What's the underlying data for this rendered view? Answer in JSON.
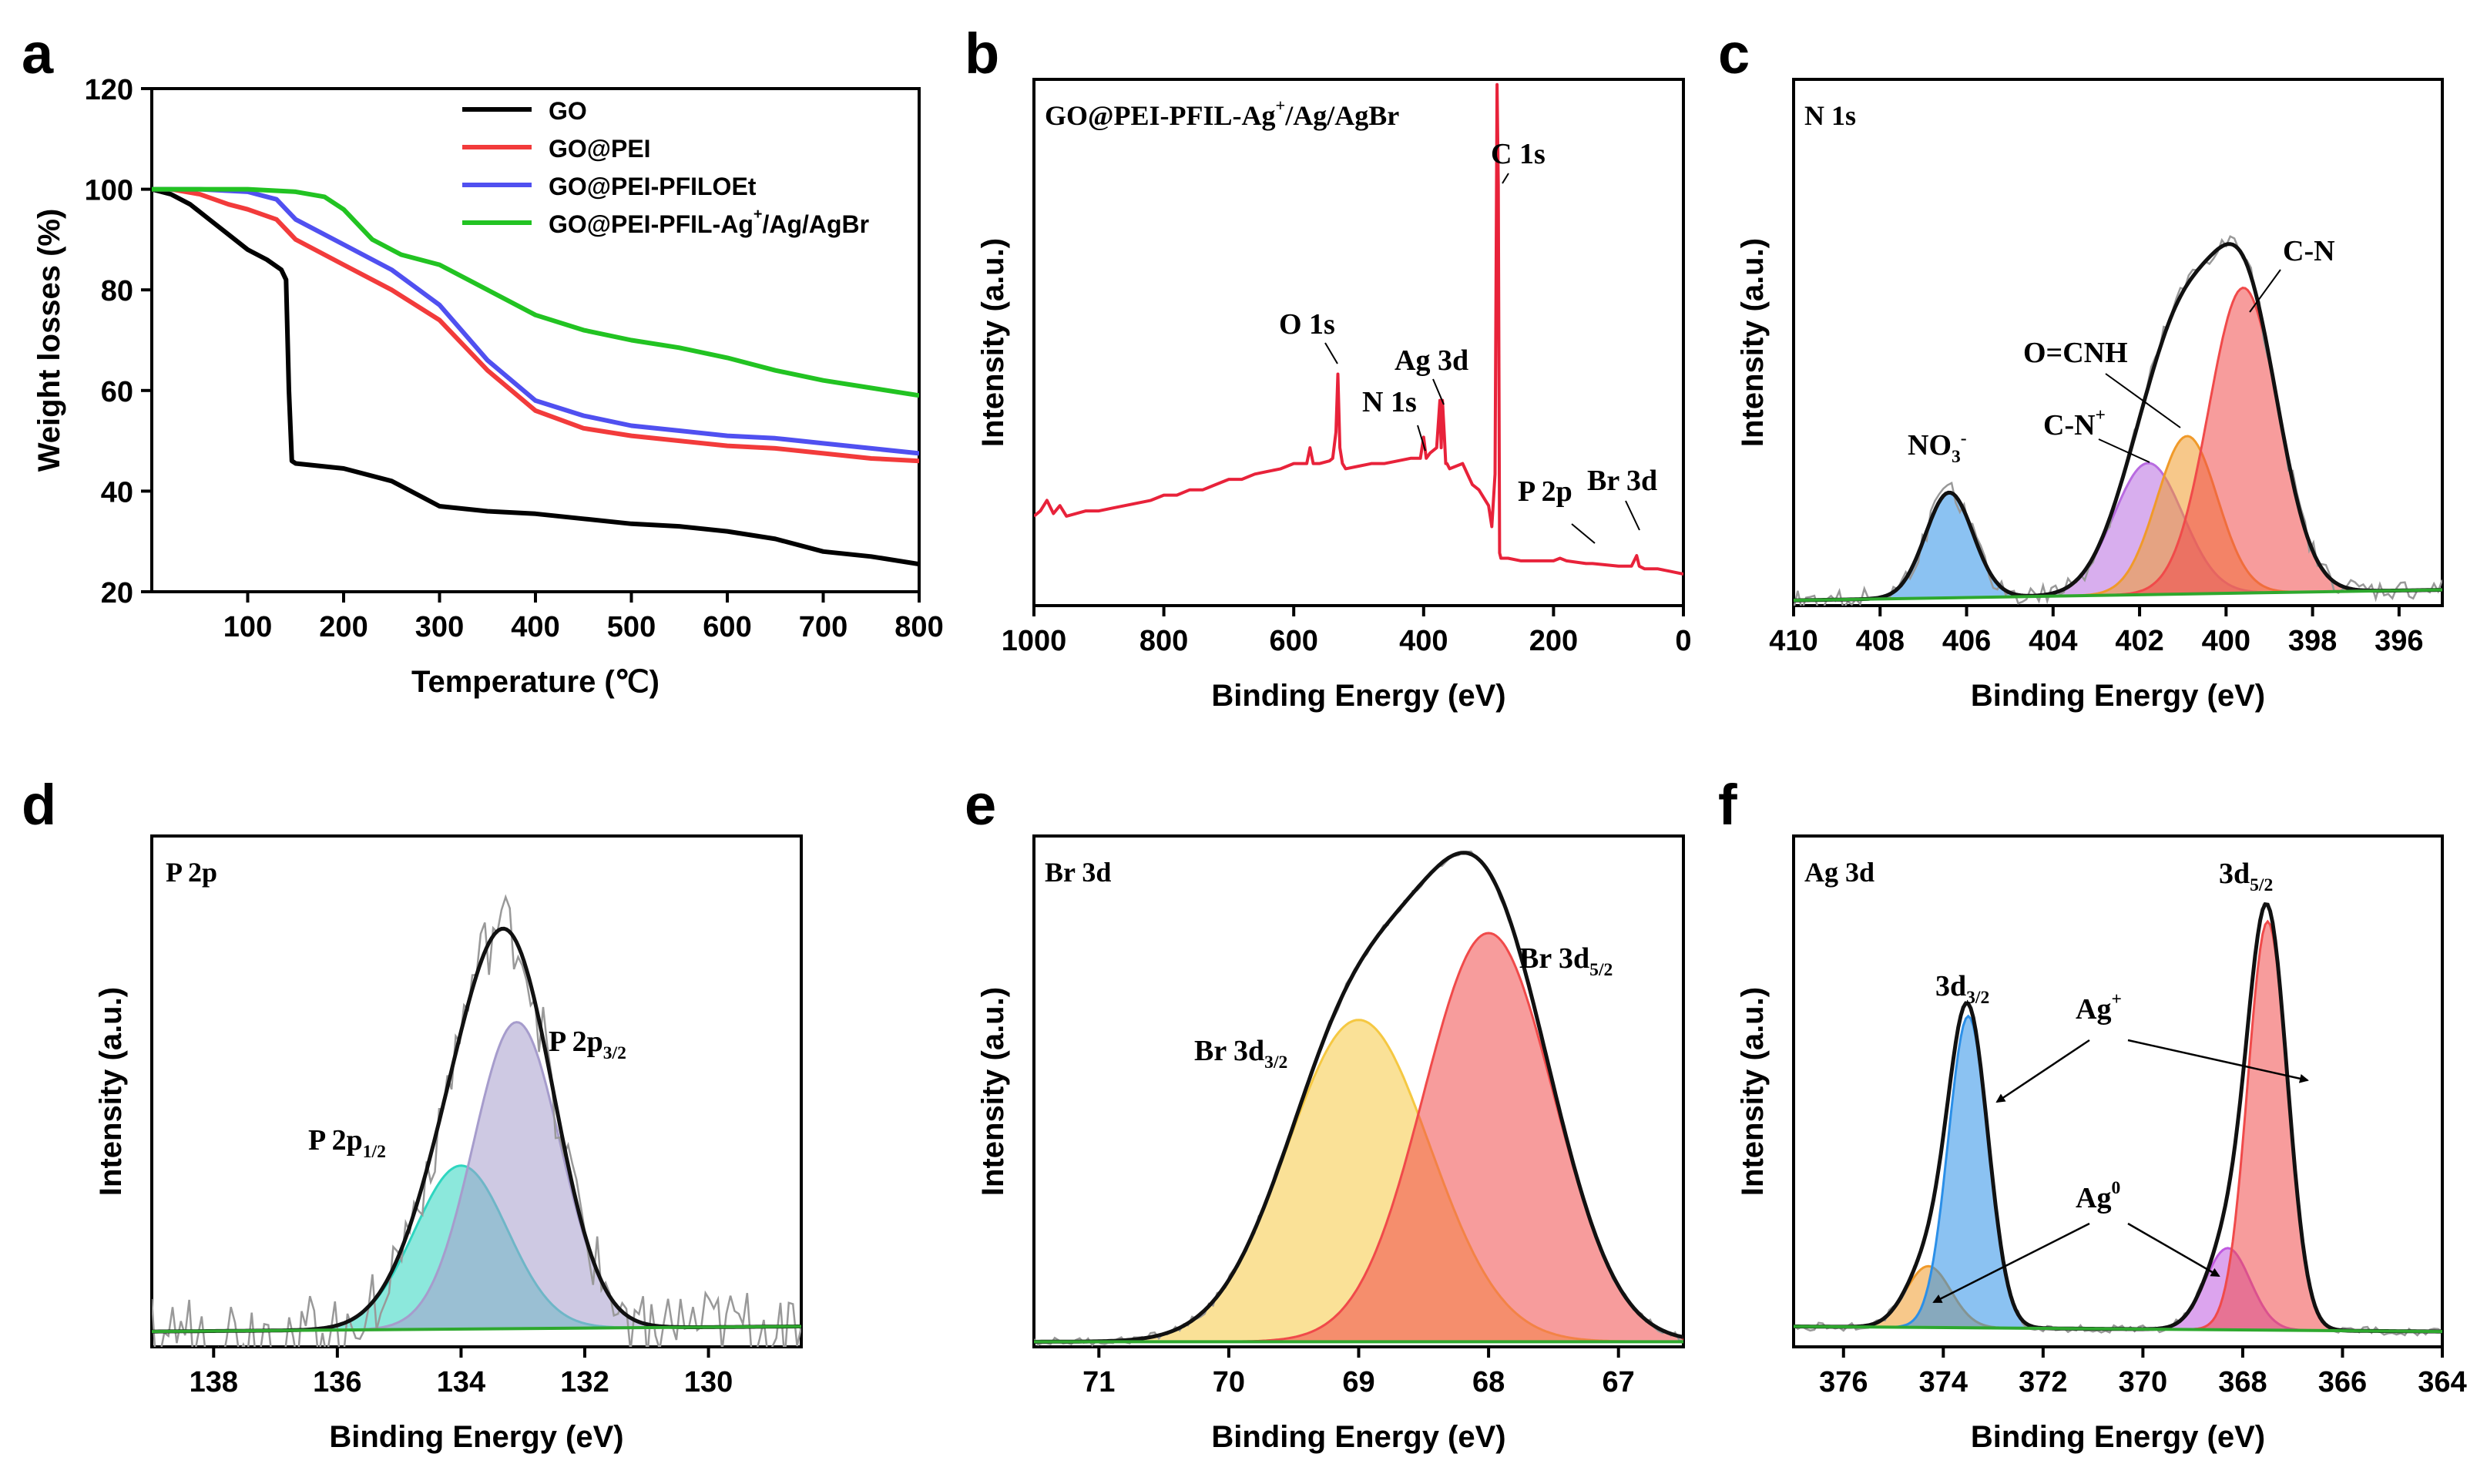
{
  "figure": {
    "letters": [
      "a",
      "b",
      "c",
      "d",
      "e",
      "f"
    ],
    "colors": {
      "go": "#000000",
      "go_pei": "#f23b3b",
      "go_pei_pfiloet": "#5050f0",
      "go_pei_pfil_ag": "#22c322",
      "survey": "#e8223a",
      "raw": "#999999",
      "envelope": "#111111",
      "baseline": "#2ea82e",
      "blue": "#2b8fe8",
      "violet": "#b86be0",
      "orange": "#f09a2a",
      "red": "#f04a4a",
      "purple_gray": "#a69ccc",
      "teal": "#2ed6c0",
      "yellow": "#f5c842",
      "magenta": "#c05ae0"
    }
  },
  "chart_data": [
    {
      "id": "a",
      "type": "line",
      "letter": "a",
      "xlabel": "Temperature (℃)",
      "ylabel": "Weight losses (%)",
      "xlim": [
        0,
        800
      ],
      "ylim": [
        20,
        120
      ],
      "xticks": [
        100,
        200,
        300,
        400,
        500,
        600,
        700,
        800
      ],
      "yticks": [
        20,
        40,
        60,
        80,
        100,
        120
      ],
      "legend_position": "top-right",
      "series": [
        {
          "name": "GO",
          "legend": [
            "GO"
          ],
          "color_key": "go",
          "x": [
            0,
            20,
            40,
            60,
            80,
            100,
            120,
            135,
            140,
            143,
            146,
            150,
            200,
            250,
            280,
            300,
            350,
            400,
            450,
            500,
            550,
            600,
            650,
            700,
            750,
            800
          ],
          "y": [
            100,
            99,
            97,
            94,
            91,
            88,
            86,
            84,
            82,
            60,
            46,
            45.5,
            44.5,
            42,
            39,
            37,
            36,
            35.5,
            34.5,
            33.5,
            33,
            32,
            30.5,
            28,
            27,
            25.5
          ]
        },
        {
          "name": "GO@PEI",
          "legend": [
            "GO@PEI"
          ],
          "color_key": "go_pei",
          "x": [
            0,
            20,
            50,
            80,
            100,
            130,
            150,
            200,
            250,
            300,
            350,
            400,
            450,
            500,
            550,
            600,
            650,
            700,
            750,
            800
          ],
          "y": [
            100,
            100,
            99,
            97,
            96,
            94,
            90,
            85,
            80,
            74,
            64,
            56,
            52.5,
            51,
            50,
            49,
            48.5,
            47.5,
            46.5,
            46
          ]
        },
        {
          "name": "GO@PEI-PFILOEt",
          "legend": [
            "GO@PEI-PFILOEt"
          ],
          "color_key": "go_pei_pfiloet",
          "x": [
            0,
            50,
            100,
            130,
            150,
            200,
            250,
            300,
            350,
            400,
            450,
            500,
            550,
            600,
            650,
            700,
            750,
            800
          ],
          "y": [
            100,
            100,
            99.5,
            98,
            94,
            89,
            84,
            77,
            66,
            58,
            55,
            53,
            52,
            51,
            50.5,
            49.5,
            48.5,
            47.5
          ]
        },
        {
          "name": "GO@PEI-PFIL-Ag⁺/Ag/AgBr",
          "legend": [
            "GO@PEI-PFIL-Ag",
            "+",
            "/Ag/AgBr"
          ],
          "color_key": "go_pei_pfil_ag",
          "x": [
            0,
            100,
            150,
            180,
            200,
            230,
            260,
            300,
            350,
            400,
            450,
            500,
            550,
            600,
            650,
            700,
            750,
            800
          ],
          "y": [
            100,
            100,
            99.5,
            98.5,
            96,
            90,
            87,
            85,
            80,
            75,
            72,
            70,
            68.5,
            66.5,
            64,
            62,
            60.5,
            59
          ]
        }
      ]
    },
    {
      "id": "b",
      "type": "line",
      "letter": "b",
      "inbox_title": [
        "GO@PEI-PFIL-Ag",
        "+",
        "/Ag/AgBr"
      ],
      "xlabel": "Binding Energy (eV)",
      "ylabel": "Intensity (a.u.)",
      "xlim": [
        1000,
        0
      ],
      "ylim": [
        0,
        100
      ],
      "xticks": [
        1000,
        800,
        600,
        400,
        200,
        0
      ],
      "show_yticks": false,
      "annotations": [
        {
          "label": "C 1s",
          "x": 285,
          "y": 99
        },
        {
          "label": "O 1s",
          "x": 532,
          "y": 43
        },
        {
          "label": "Ag 3d",
          "x": 368,
          "y": 37
        },
        {
          "label": "N 1s",
          "x": 400,
          "y": 27
        },
        {
          "label": "P 2p",
          "x": 133,
          "y": 9
        },
        {
          "label": "Br 3d",
          "x": 69,
          "y": 10
        }
      ],
      "series": [
        {
          "name": "survey spectrum",
          "color_key": "survey",
          "x": [
            1000,
            990,
            980,
            970,
            960,
            950,
            920,
            900,
            880,
            860,
            840,
            820,
            800,
            780,
            760,
            740,
            720,
            700,
            680,
            660,
            640,
            620,
            600,
            580,
            575,
            570,
            560,
            545,
            540,
            535,
            532,
            529,
            525,
            520,
            500,
            480,
            460,
            440,
            420,
            405,
            400,
            396,
            390,
            380,
            375,
            373,
            371,
            368,
            366,
            364,
            360,
            340,
            325,
            315,
            300,
            295,
            290,
            287,
            285,
            283,
            281,
            278,
            270,
            250,
            230,
            200,
            190,
            180,
            150,
            140,
            100,
            80,
            72,
            68,
            60,
            40,
            20,
            0
          ],
          "y": [
            17,
            18,
            20,
            17.5,
            19,
            17,
            18,
            18,
            18.5,
            19,
            19.5,
            20,
            21,
            21,
            22,
            22,
            23,
            24,
            24,
            25,
            25.5,
            26,
            27,
            27,
            30,
            27,
            27,
            27.5,
            28,
            33,
            44,
            30,
            27,
            26,
            26.5,
            27,
            27,
            27.5,
            28,
            28,
            32,
            28,
            29,
            30,
            39,
            30,
            39,
            32,
            27,
            27,
            26,
            27,
            23,
            22,
            19,
            15,
            25,
            99,
            80,
            10,
            9,
            9,
            9,
            8.5,
            8.5,
            8.5,
            9,
            8.5,
            8,
            8,
            7.5,
            7.5,
            9.5,
            7.5,
            7,
            7,
            6.5,
            6
          ]
        }
      ]
    },
    {
      "id": "c",
      "type": "line",
      "letter": "c",
      "inbox_title": [
        "N 1s"
      ],
      "xlabel": "Binding Energy (eV)",
      "ylabel": "Intensity (a.u.)",
      "xlim": [
        410,
        395
      ],
      "ylim": [
        0,
        100
      ],
      "xticks": [
        410,
        408,
        406,
        404,
        402,
        400,
        398,
        396
      ],
      "show_yticks": false,
      "baseline": {
        "x": [
          410,
          395
        ],
        "y": [
          1,
          3
        ]
      },
      "components": [
        {
          "name": "NO3-",
          "center": 406.4,
          "height": 20,
          "sigma": 0.55,
          "color_key": "blue"
        },
        {
          "name": "C-N+",
          "center": 401.8,
          "height": 25,
          "sigma": 0.8,
          "color_key": "violet"
        },
        {
          "name": "O=CNH",
          "center": 400.9,
          "height": 30,
          "sigma": 0.7,
          "color_key": "orange"
        },
        {
          "name": "C-N",
          "center": 399.6,
          "height": 58,
          "sigma": 0.8,
          "color_key": "red"
        }
      ],
      "annotations": [
        {
          "label": [
            "C-N"
          ],
          "x": 399.5,
          "y": 70
        },
        {
          "label": [
            "O=CNH"
          ],
          "x": 400.9,
          "y": 45
        },
        {
          "label": [
            "C-N",
            "+",
            ""
          ],
          "x": 401.7,
          "y": 28
        },
        {
          "label": [
            "NO",
            "3",
            "-"
          ],
          "x": 406.4,
          "y": 30
        }
      ]
    },
    {
      "id": "d",
      "type": "line",
      "letter": "d",
      "inbox_title": [
        "P 2p"
      ],
      "xlabel": "Binding Energy (eV)",
      "ylabel": "Intensity (a.u.)",
      "xlim": [
        139,
        128.5
      ],
      "ylim": [
        0,
        100
      ],
      "xticks": [
        138,
        136,
        134,
        132,
        130
      ],
      "show_yticks": false,
      "baseline": {
        "x": [
          139,
          128.5
        ],
        "y": [
          3,
          4
        ]
      },
      "components": [
        {
          "name": "P 2p1/2",
          "center": 134.0,
          "height": 32,
          "sigma": 0.75,
          "color_key": "teal"
        },
        {
          "name": "P 2p3/2",
          "center": 133.1,
          "height": 60,
          "sigma": 0.7,
          "color_key": "purple_gray"
        }
      ],
      "annotations": [
        {
          "label": [
            "P 2p",
            "3/2"
          ],
          "x": 132.5,
          "y": 70
        },
        {
          "label": [
            "P 2p",
            "1/2"
          ],
          "x": 134.6,
          "y": 40
        }
      ]
    },
    {
      "id": "e",
      "type": "line",
      "letter": "e",
      "inbox_title": [
        "Br 3d"
      ],
      "xlabel": "Binding Energy (eV)",
      "ylabel": "Intensity (a.u.)",
      "xlim": [
        71.5,
        66.5
      ],
      "ylim": [
        0,
        100
      ],
      "xticks": [
        71,
        70,
        69,
        68,
        67
      ],
      "show_yticks": false,
      "baseline": {
        "x": [
          71.5,
          66.5
        ],
        "y": [
          1,
          1
        ]
      },
      "components": [
        {
          "name": "Br 3d3/2",
          "center": 69.0,
          "height": 63,
          "sigma": 0.55,
          "color_key": "yellow"
        },
        {
          "name": "Br 3d5/2",
          "center": 68.0,
          "height": 80,
          "sigma": 0.5,
          "color_key": "red"
        }
      ],
      "annotations": [
        {
          "label": [
            "Br 3d",
            "5/2"
          ],
          "x": 67.7,
          "y": 86
        },
        {
          "label": [
            "Br 3d",
            "3/2"
          ],
          "x": 69.4,
          "y": 66
        }
      ]
    },
    {
      "id": "f",
      "type": "line",
      "letter": "f",
      "inbox_title": [
        "Ag 3d"
      ],
      "xlabel": "Binding Energy (eV)",
      "ylabel": "Intensity (a.u.)",
      "xlim": [
        377,
        364
      ],
      "ylim": [
        0,
        100
      ],
      "xticks": [
        376,
        374,
        372,
        370,
        368,
        366,
        364
      ],
      "show_yticks": false,
      "baseline": {
        "x": [
          377,
          364
        ],
        "y": [
          4,
          3
        ]
      },
      "components": [
        {
          "name": "Ag0 3d3/2",
          "center": 374.3,
          "height": 12,
          "sigma": 0.45,
          "color_key": "orange"
        },
        {
          "name": "Ag+ 3d3/2",
          "center": 373.5,
          "height": 61,
          "sigma": 0.4,
          "color_key": "blue"
        },
        {
          "name": "Ag0 3d5/2",
          "center": 368.3,
          "height": 16,
          "sigma": 0.45,
          "color_key": "magenta"
        },
        {
          "name": "Ag+ 3d5/2",
          "center": 367.5,
          "height": 80,
          "sigma": 0.4,
          "color_key": "red"
        }
      ],
      "annotations": [
        {
          "label": [
            "3d",
            "5/2"
          ],
          "x": 367.5,
          "y": 94
        },
        {
          "label": [
            "3d",
            "3/2"
          ],
          "x": 373.6,
          "y": 76
        },
        {
          "label": [
            "Ag",
            "+",
            ""
          ],
          "x": 370.9,
          "y": 66
        },
        {
          "label": [
            "Ag",
            "0",
            ""
          ],
          "x": 370.9,
          "y": 30
        }
      ]
    }
  ]
}
